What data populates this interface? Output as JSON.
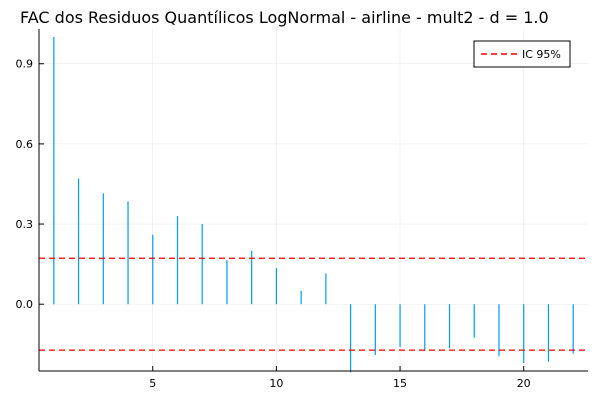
{
  "chart_data": {
    "type": "bar",
    "title": "FAC dos Residuos Quantílicos LogNormal - airline - mult2 - d = 1.0",
    "xlabel": "",
    "ylabel": "",
    "xlim": [
      0.4,
      22.6
    ],
    "ylim": [
      -0.25,
      1.03
    ],
    "xticks": [
      5,
      10,
      15,
      20
    ],
    "yticks": [
      0.0,
      0.3,
      0.6,
      0.9
    ],
    "xtick_labels": [
      "5",
      "10",
      "15",
      "20"
    ],
    "ytick_labels": [
      "0.0",
      "0.3",
      "0.6",
      "0.9"
    ],
    "grid": true,
    "legend_position": "top-right",
    "x": [
      1,
      2,
      3,
      4,
      5,
      6,
      7,
      8,
      9,
      10,
      11,
      12,
      13,
      14,
      15,
      16,
      17,
      18,
      19,
      20,
      21,
      22
    ],
    "values": [
      1.0,
      0.47,
      0.415,
      0.385,
      0.26,
      0.33,
      0.3,
      0.165,
      0.2,
      0.135,
      0.05,
      0.115,
      -0.255,
      -0.19,
      -0.16,
      -0.175,
      -0.165,
      -0.125,
      -0.195,
      -0.22,
      -0.215,
      -0.185
    ],
    "bar_color": "#009af9",
    "reference_lines": [
      {
        "name": "IC 95%",
        "y": 0.172,
        "color": "#ff0000",
        "style": "dashed"
      },
      {
        "y": -0.172,
        "color": "#ff0000",
        "style": "dashed"
      }
    ],
    "legend": [
      {
        "label": "IC 95%",
        "color": "#ff0000",
        "style": "dashed"
      }
    ]
  }
}
